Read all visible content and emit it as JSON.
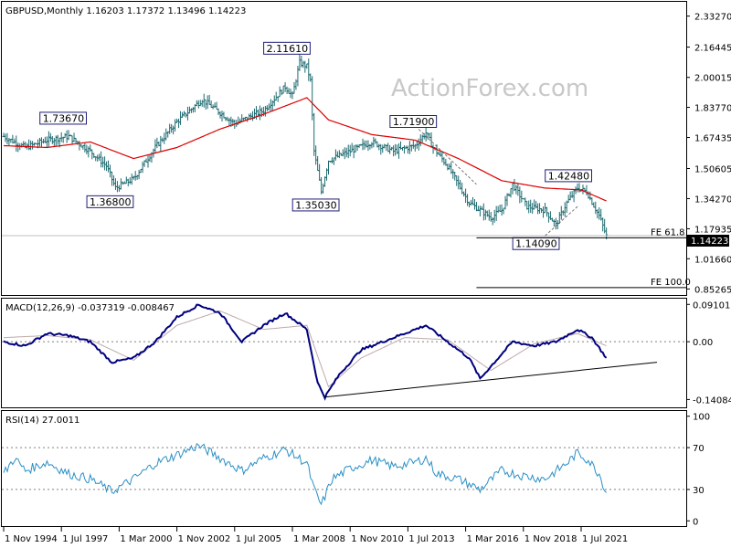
{
  "chart_data": [
    {
      "type": "candlestick",
      "header": "GBPUSD,Monthly  1.16203 1.17372 1.13496 1.14223",
      "watermark": "ActionForex.com",
      "ylim": [
        0.82,
        2.41
      ],
      "ytick_labels": [
        "2.33270",
        "2.16445",
        "2.00015",
        "1.83770",
        "1.67435",
        "1.50605",
        "1.34270",
        "1.17935",
        "1.01660",
        "0.85265"
      ],
      "last_price": "1.14223",
      "price_points": [
        [
          0,
          1.68
        ],
        [
          12,
          1.62
        ],
        [
          24,
          1.66
        ],
        [
          36,
          1.68
        ],
        [
          48,
          1.6
        ],
        [
          57,
          1.52
        ],
        [
          62,
          1.4
        ],
        [
          72,
          1.45
        ],
        [
          84,
          1.62
        ],
        [
          96,
          1.76
        ],
        [
          110,
          1.88
        ],
        [
          128,
          1.75
        ],
        [
          144,
          1.82
        ],
        [
          156,
          1.95
        ],
        [
          160,
          1.9
        ],
        [
          164,
          2.08
        ],
        [
          168,
          2.06
        ],
        [
          170,
          1.98
        ],
        [
          172,
          1.6
        ],
        [
          176,
          1.38
        ],
        [
          180,
          1.55
        ],
        [
          192,
          1.6
        ],
        [
          204,
          1.65
        ],
        [
          216,
          1.6
        ],
        [
          228,
          1.63
        ],
        [
          234,
          1.7
        ],
        [
          238,
          1.62
        ],
        [
          246,
          1.52
        ],
        [
          258,
          1.32
        ],
        [
          270,
          1.24
        ],
        [
          276,
          1.28
        ],
        [
          282,
          1.42
        ],
        [
          290,
          1.3
        ],
        [
          300,
          1.28
        ],
        [
          306,
          1.2
        ],
        [
          312,
          1.32
        ],
        [
          318,
          1.4
        ],
        [
          323,
          1.38
        ],
        [
          330,
          1.25
        ],
        [
          334,
          1.14
        ]
      ],
      "ma_points": [
        [
          0,
          1.63
        ],
        [
          24,
          1.62
        ],
        [
          48,
          1.65
        ],
        [
          72,
          1.56
        ],
        [
          96,
          1.62
        ],
        [
          120,
          1.72
        ],
        [
          144,
          1.8
        ],
        [
          168,
          1.89
        ],
        [
          180,
          1.77
        ],
        [
          204,
          1.69
        ],
        [
          228,
          1.66
        ],
        [
          252,
          1.56
        ],
        [
          276,
          1.44
        ],
        [
          300,
          1.4
        ],
        [
          320,
          1.39
        ],
        [
          334,
          1.33
        ]
      ],
      "annotations": [
        {
          "text": "1.73670",
          "t": 36,
          "value": 1.7367
        },
        {
          "text": "1.36800",
          "t": 62,
          "value": 1.368
        },
        {
          "text": "2.11610",
          "t": 160,
          "value": 2.1161
        },
        {
          "text": "1.35030",
          "t": 176,
          "value": 1.3503
        },
        {
          "text": "1.71900",
          "t": 230,
          "value": 1.719
        },
        {
          "text": "1.42480",
          "t": 316,
          "value": 1.4248
        },
        {
          "text": "1.14090",
          "t": 298,
          "value": 1.1409
        }
      ],
      "fe_levels": [
        {
          "label": "FE 61.8",
          "value": 1.13
        },
        {
          "label": "FE 100.0",
          "value": 0.86
        }
      ]
    },
    {
      "type": "line",
      "header": "MACD(12,26,9) -0.037319 -0.008467",
      "ylim": [
        -0.16,
        0.105
      ],
      "ytick_labels": [
        "0.091015",
        "0.00",
        "-0.140843"
      ],
      "macd_points": [
        [
          0,
          0.0
        ],
        [
          12,
          -0.01
        ],
        [
          24,
          0.02
        ],
        [
          36,
          0.015
        ],
        [
          48,
          0.0
        ],
        [
          60,
          -0.05
        ],
        [
          72,
          -0.04
        ],
        [
          84,
          0.0
        ],
        [
          96,
          0.06
        ],
        [
          108,
          0.09
        ],
        [
          120,
          0.07
        ],
        [
          132,
          0.0
        ],
        [
          144,
          0.04
        ],
        [
          156,
          0.07
        ],
        [
          168,
          0.03
        ],
        [
          174,
          -0.1
        ],
        [
          178,
          -0.135
        ],
        [
          186,
          -0.08
        ],
        [
          198,
          -0.02
        ],
        [
          210,
          0.0
        ],
        [
          222,
          0.02
        ],
        [
          234,
          0.04
        ],
        [
          246,
          0.0
        ],
        [
          258,
          -0.04
        ],
        [
          264,
          -0.09
        ],
        [
          270,
          -0.06
        ],
        [
          282,
          0.0
        ],
        [
          294,
          -0.01
        ],
        [
          306,
          0.0
        ],
        [
          318,
          0.03
        ],
        [
          326,
          0.01
        ],
        [
          334,
          -0.04
        ]
      ],
      "signal_points": [
        [
          0,
          0.01
        ],
        [
          24,
          0.015
        ],
        [
          48,
          0.005
        ],
        [
          72,
          -0.045
        ],
        [
          96,
          0.04
        ],
        [
          120,
          0.075
        ],
        [
          144,
          0.03
        ],
        [
          168,
          0.04
        ],
        [
          180,
          -0.11
        ],
        [
          198,
          -0.04
        ],
        [
          222,
          0.01
        ],
        [
          246,
          0.005
        ],
        [
          270,
          -0.07
        ],
        [
          294,
          -0.005
        ],
        [
          318,
          0.02
        ],
        [
          334,
          -0.01
        ]
      ],
      "trendline": [
        [
          178,
          -0.135
        ],
        [
          362,
          -0.05
        ]
      ],
      "zero_line": 0.0
    },
    {
      "type": "line",
      "header": "RSI(14) 27.0011",
      "ylim": [
        -5,
        105
      ],
      "ytick_labels": [
        "100",
        "70",
        "30",
        "0"
      ],
      "reference_levels": [
        70,
        30
      ],
      "rsi_points": [
        [
          0,
          45
        ],
        [
          6,
          60
        ],
        [
          12,
          48
        ],
        [
          24,
          56
        ],
        [
          36,
          45
        ],
        [
          48,
          40
        ],
        [
          60,
          28
        ],
        [
          72,
          40
        ],
        [
          84,
          55
        ],
        [
          96,
          63
        ],
        [
          108,
          72
        ],
        [
          120,
          60
        ],
        [
          132,
          48
        ],
        [
          144,
          60
        ],
        [
          156,
          68
        ],
        [
          168,
          55
        ],
        [
          172,
          30
        ],
        [
          176,
          15
        ],
        [
          182,
          40
        ],
        [
          192,
          50
        ],
        [
          204,
          58
        ],
        [
          216,
          52
        ],
        [
          228,
          56
        ],
        [
          234,
          60
        ],
        [
          240,
          45
        ],
        [
          252,
          40
        ],
        [
          264,
          30
        ],
        [
          276,
          48
        ],
        [
          288,
          43
        ],
        [
          300,
          40
        ],
        [
          312,
          55
        ],
        [
          318,
          65
        ],
        [
          324,
          58
        ],
        [
          330,
          45
        ],
        [
          334,
          27
        ]
      ]
    }
  ],
  "x_axis": {
    "range": [
      0,
      400
    ],
    "tick_labels": [
      "1 Nov 1994",
      "1 Jul 1997",
      "1 Mar 2000",
      "1 Nov 2002",
      "1 Jul 2005",
      "1 Mar 2008",
      "1 Nov 2010",
      "1 Jul 2013",
      "1 Mar 2016",
      "1 Nov 2018",
      "1 Jul 2021"
    ],
    "tick_values": [
      0,
      32,
      64,
      96,
      128,
      160,
      192,
      224,
      256,
      288,
      320
    ]
  },
  "colors": {
    "candles": "#1d6a70",
    "ma": "#dd0000",
    "macd": "#00007f",
    "signal": "#bfa9a9",
    "rsi": "#2a8fc5",
    "border": "#000000",
    "level": "#808080"
  }
}
